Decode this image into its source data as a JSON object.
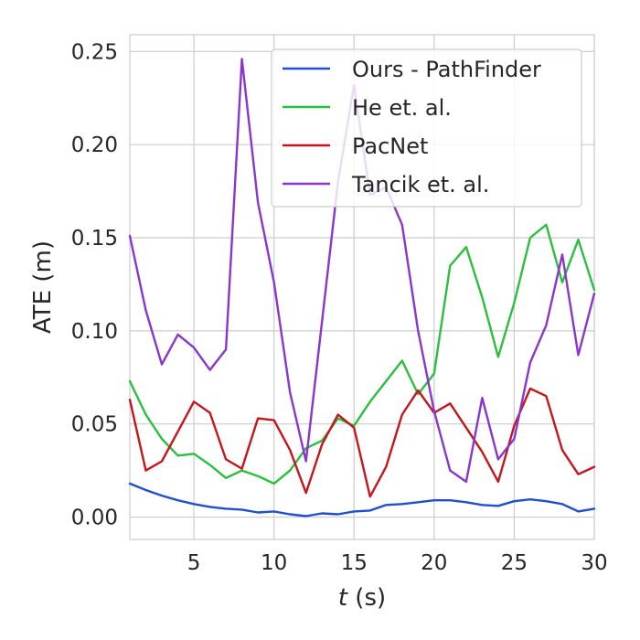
{
  "chart_data": {
    "type": "line",
    "title": "",
    "xlabel_var": "t",
    "xlabel_unit": " (s)",
    "ylabel": "ATE (m)",
    "xlim": [
      1,
      30
    ],
    "ylim": [
      -0.012,
      0.259
    ],
    "xticks": [
      5,
      10,
      15,
      20,
      25,
      30
    ],
    "yticks": [
      0.0,
      0.05,
      0.1,
      0.15,
      0.2,
      0.25
    ],
    "ytick_labels": [
      "0.00",
      "0.05",
      "0.10",
      "0.15",
      "0.20",
      "0.25"
    ],
    "grid": true,
    "legend_position": "top-right",
    "x": [
      1,
      2,
      3,
      4,
      5,
      6,
      7,
      8,
      9,
      10,
      11,
      12,
      13,
      14,
      15,
      16,
      17,
      18,
      19,
      20,
      21,
      22,
      23,
      24,
      25,
      26,
      27,
      28,
      29,
      30
    ],
    "series": [
      {
        "name": "Ours - PathFinder",
        "color": "#1f4fd0",
        "values": [
          0.018,
          0.0145,
          0.0115,
          0.009,
          0.007,
          0.0055,
          0.0045,
          0.004,
          0.0025,
          0.003,
          0.0015,
          0.0005,
          0.002,
          0.0015,
          0.003,
          0.0035,
          0.0065,
          0.007,
          0.008,
          0.009,
          0.009,
          0.008,
          0.0065,
          0.006,
          0.0085,
          0.0095,
          0.0085,
          0.007,
          0.003,
          0.0045
        ]
      },
      {
        "name": "He et. al.",
        "color": "#2bbf3f",
        "values": [
          0.073,
          0.055,
          0.042,
          0.033,
          0.034,
          0.028,
          0.021,
          0.025,
          0.022,
          0.018,
          0.025,
          0.037,
          0.041,
          0.053,
          0.049,
          0.062,
          0.073,
          0.084,
          0.066,
          0.077,
          0.135,
          0.145,
          0.118,
          0.086,
          0.115,
          0.15,
          0.157,
          0.126,
          0.149,
          0.122
        ]
      },
      {
        "name": "PacNet",
        "color": "#c4161c",
        "values": [
          0.063,
          0.025,
          0.03,
          0.046,
          0.062,
          0.056,
          0.031,
          0.026,
          0.053,
          0.052,
          0.036,
          0.013,
          0.039,
          0.055,
          0.048,
          0.011,
          0.027,
          0.055,
          0.068,
          0.056,
          0.061,
          0.048,
          0.035,
          0.019,
          0.049,
          0.069,
          0.065,
          0.036,
          0.023,
          0.027
        ]
      },
      {
        "name": "Tancik et. al.",
        "color": "#8a35cc",
        "values": [
          0.151,
          0.111,
          0.082,
          0.098,
          0.091,
          0.079,
          0.09,
          0.246,
          0.169,
          0.126,
          0.067,
          0.03,
          0.105,
          0.18,
          0.232,
          0.173,
          0.177,
          0.157,
          0.1,
          0.057,
          0.025,
          0.019,
          0.064,
          0.031,
          0.042,
          0.083,
          0.103,
          0.141,
          0.087,
          0.12
        ]
      }
    ]
  }
}
